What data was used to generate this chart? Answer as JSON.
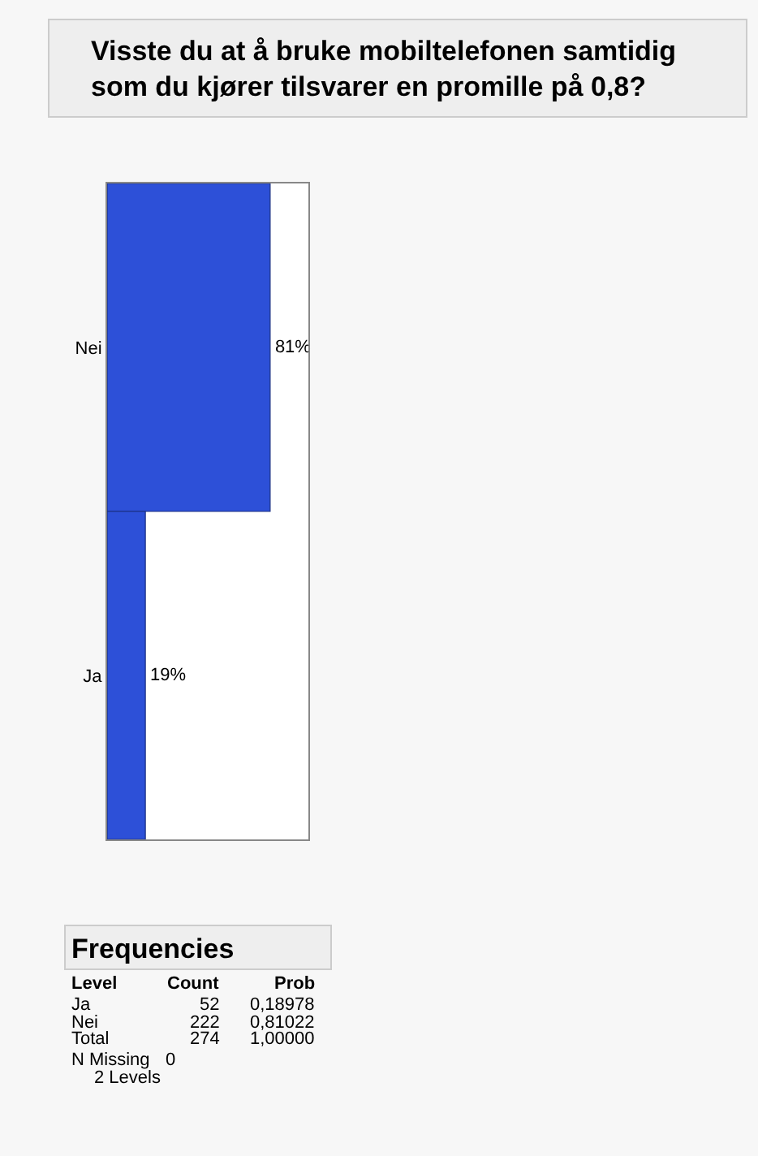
{
  "chart_data": {
    "type": "bar",
    "orientation": "horizontal",
    "title": "Visste du at å bruke mobiltelefonen samtidig som du kjører tilsvarer en promille på 0,8?",
    "categories": [
      "Nei",
      "Ja"
    ],
    "values": [
      81,
      19
    ],
    "value_labels": [
      "81%",
      "19%"
    ],
    "color": "#2d50d8",
    "xlim": [
      0,
      100
    ],
    "tick_labels": "y",
    "legend": false,
    "annotations": [
      "Frequencies",
      "Level",
      "Count",
      "Prob",
      "Ja",
      "52",
      "0,18978",
      "Nei",
      "222",
      "0,81022",
      "Total",
      "274",
      "1,00000",
      "N Missing",
      "0",
      "2 Levels"
    ]
  }
}
